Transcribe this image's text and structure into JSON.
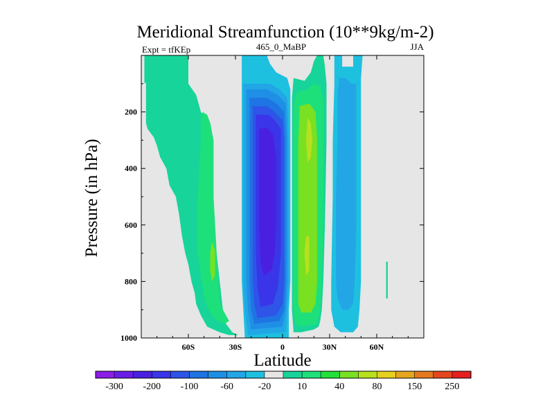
{
  "chart_data": {
    "type": "heatmap",
    "title": "Meridional Streamfunction (10**9kg/m-2)",
    "subtitle_left": "Expt = tfKEp",
    "subtitle_center": "465_0_MaBP",
    "subtitle_right": "JJA",
    "xlabel": "Latitude",
    "ylabel": "Pressure (in hPa)",
    "xlim": [
      -90,
      90
    ],
    "ylim": [
      0,
      1000
    ],
    "y_inverted": true,
    "x_ticks": [
      {
        "value": -60,
        "label": "60S"
      },
      {
        "value": -30,
        "label": "30S"
      },
      {
        "value": 0,
        "label": "0"
      },
      {
        "value": 30,
        "label": "30N"
      },
      {
        "value": 60,
        "label": "60N"
      }
    ],
    "y_ticks": [
      {
        "value": 200,
        "label": "200"
      },
      {
        "value": 400,
        "label": "400"
      },
      {
        "value": 600,
        "label": "600"
      },
      {
        "value": 800,
        "label": "800"
      },
      {
        "value": 1000,
        "label": "1000"
      }
    ],
    "background_color": "#e6e6e6",
    "colorbar": {
      "levels": [
        -300,
        -250,
        -200,
        -150,
        -100,
        -80,
        -60,
        -40,
        -20,
        -10,
        10,
        20,
        40,
        60,
        80,
        100,
        150,
        200,
        250,
        300
      ],
      "labels": [
        "-300",
        "-200",
        "-100",
        "-60",
        "-20",
        "10",
        "40",
        "80",
        "150",
        "250"
      ],
      "colors": [
        "#8c1de6",
        "#6a1de6",
        "#4a20e0",
        "#3a35e8",
        "#2e54e8",
        "#1f74e3",
        "#1f8fe6",
        "#22a6e6",
        "#1ec0e0",
        "#e6e6e6",
        "#17d49a",
        "#1ee07a",
        "#22e03a",
        "#7ae022",
        "#b8e01e",
        "#e6d01e",
        "#e6a61e",
        "#e6781e",
        "#e6461e",
        "#e61e1e"
      ]
    },
    "contours": [
      {
        "name": "sh-polar-cell",
        "level": "10 to 20",
        "color": "#17d49a",
        "points": [
          [
            -88,
            0
          ],
          [
            -70,
            0
          ],
          [
            -70,
            20
          ],
          [
            -74,
            40
          ],
          [
            -78,
            60
          ],
          [
            -84,
            80
          ],
          [
            -88,
            100
          ]
        ]
      },
      {
        "name": "sh-ferrel-outer",
        "level": "10 to 20",
        "color": "#17d49a",
        "points": [
          [
            -87,
            0
          ],
          [
            -60,
            0
          ],
          [
            -60,
            100
          ],
          [
            -55,
            140
          ],
          [
            -52,
            200
          ],
          [
            -46,
            250
          ],
          [
            -44,
            300
          ],
          [
            -44,
            500
          ],
          [
            -42,
            700
          ],
          [
            -40,
            800
          ],
          [
            -38,
            900
          ],
          [
            -36,
            950
          ],
          [
            -32,
            980
          ],
          [
            -28,
            990
          ],
          [
            -34,
            990
          ],
          [
            -40,
            980
          ],
          [
            -48,
            960
          ],
          [
            -52,
            920
          ],
          [
            -55,
            880
          ],
          [
            -56,
            840
          ],
          [
            -58,
            800
          ],
          [
            -60,
            740
          ],
          [
            -62,
            700
          ],
          [
            -64,
            640
          ],
          [
            -66,
            560
          ],
          [
            -68,
            500
          ],
          [
            -72,
            460
          ],
          [
            -74,
            400
          ],
          [
            -78,
            360
          ],
          [
            -80,
            320
          ],
          [
            -82,
            290
          ],
          [
            -86,
            260
          ],
          [
            -87,
            240
          ]
        ]
      },
      {
        "name": "sh-ferrel-inner",
        "level": "20 to 40",
        "color": "#1ee07a",
        "points": [
          [
            -51,
            200
          ],
          [
            -48,
            210
          ],
          [
            -46,
            240
          ],
          [
            -44,
            300
          ],
          [
            -44,
            500
          ],
          [
            -42,
            700
          ],
          [
            -41,
            800
          ],
          [
            -40,
            870
          ],
          [
            -38,
            900
          ],
          [
            -34,
            940
          ],
          [
            -37,
            950
          ],
          [
            -44,
            930
          ],
          [
            -48,
            890
          ],
          [
            -50,
            850
          ],
          [
            -52,
            780
          ],
          [
            -54,
            700
          ],
          [
            -54,
            600
          ],
          [
            -54,
            500
          ],
          [
            -53,
            400
          ],
          [
            -52,
            300
          ],
          [
            -52,
            240
          ]
        ]
      },
      {
        "name": "sh-ferrel-core",
        "level": "40 to 60",
        "color": "#7ae022",
        "points": [
          [
            -45,
            660
          ],
          [
            -43,
            690
          ],
          [
            -43,
            780
          ],
          [
            -45,
            800
          ],
          [
            -46,
            760
          ],
          [
            -46,
            700
          ]
        ]
      },
      {
        "name": "hadley-neg-outer",
        "level": "-20 to -10",
        "color": "#1ec0e0",
        "points": [
          [
            -26,
            0
          ],
          [
            -10,
            0
          ],
          [
            -8,
            30
          ],
          [
            -4,
            60
          ],
          [
            3,
            80
          ],
          [
            5,
            120
          ],
          [
            5,
            800
          ],
          [
            4,
            900
          ],
          [
            4,
            1000
          ],
          [
            -24,
            1000
          ],
          [
            -25,
            900
          ],
          [
            -26,
            800
          ],
          [
            -26,
            400
          ]
        ]
      },
      {
        "name": "hadley-neg-l2",
        "level": "-40 to -20",
        "color": "#22a6e6",
        "points": [
          [
            -25,
            100
          ],
          [
            -8,
            100
          ],
          [
            -2,
            120
          ],
          [
            3,
            150
          ],
          [
            4,
            300
          ],
          [
            4,
            800
          ],
          [
            3,
            900
          ],
          [
            2,
            980
          ],
          [
            -22,
            990
          ],
          [
            -24,
            900
          ],
          [
            -25,
            800
          ],
          [
            -25,
            300
          ]
        ]
      },
      {
        "name": "hadley-neg-l3",
        "level": "-60 to -40",
        "color": "#1f8fe6",
        "points": [
          [
            -23,
            120
          ],
          [
            -10,
            120
          ],
          [
            -3,
            140
          ],
          [
            2,
            170
          ],
          [
            3,
            300
          ],
          [
            3,
            800
          ],
          [
            2,
            900
          ],
          [
            0,
            960
          ],
          [
            -20,
            970
          ],
          [
            -22,
            900
          ],
          [
            -23,
            800
          ],
          [
            -23,
            300
          ]
        ]
      },
      {
        "name": "hadley-neg-l4",
        "level": "-80 to -60",
        "color": "#1f74e3",
        "points": [
          [
            -21,
            150
          ],
          [
            -10,
            150
          ],
          [
            -4,
            170
          ],
          [
            1,
            200
          ],
          [
            2,
            300
          ],
          [
            2,
            800
          ],
          [
            1,
            900
          ],
          [
            -2,
            940
          ],
          [
            -18,
            950
          ],
          [
            -20,
            900
          ],
          [
            -21,
            800
          ],
          [
            -21,
            300
          ]
        ]
      },
      {
        "name": "hadley-neg-l5",
        "level": "-100 to -80",
        "color": "#2e54e8",
        "points": [
          [
            -19,
            180
          ],
          [
            -10,
            180
          ],
          [
            -5,
            200
          ],
          [
            0,
            230
          ],
          [
            1,
            300
          ],
          [
            1,
            800
          ],
          [
            0,
            880
          ],
          [
            -4,
            920
          ],
          [
            -16,
            930
          ],
          [
            -18,
            880
          ],
          [
            -19,
            800
          ],
          [
            -19,
            300
          ]
        ]
      },
      {
        "name": "hadley-neg-l6",
        "level": "-150 to -100",
        "color": "#3a35e8",
        "points": [
          [
            -17,
            210
          ],
          [
            -9,
            210
          ],
          [
            -5,
            230
          ],
          [
            -1,
            260
          ],
          [
            -1,
            400
          ],
          [
            -1,
            700
          ],
          [
            -3,
            820
          ],
          [
            -6,
            880
          ],
          [
            -14,
            890
          ],
          [
            -16,
            820
          ],
          [
            -17,
            700
          ],
          [
            -17,
            400
          ]
        ]
      },
      {
        "name": "hadley-neg-core",
        "level": "-200 to -150",
        "color": "#4a20e0",
        "points": [
          [
            -15,
            260
          ],
          [
            -10,
            255
          ],
          [
            -6,
            280
          ],
          [
            -4,
            360
          ],
          [
            -4,
            600
          ],
          [
            -5,
            700
          ],
          [
            -7,
            760
          ],
          [
            -12,
            780
          ],
          [
            -14,
            730
          ],
          [
            -15,
            600
          ],
          [
            -15,
            400
          ]
        ]
      },
      {
        "name": "hadley-pos-outer",
        "level": "10 to 20",
        "color": "#17d49a",
        "points": [
          [
            7,
            80
          ],
          [
            14,
            90
          ],
          [
            18,
            60
          ],
          [
            20,
            20
          ],
          [
            22,
            0
          ],
          [
            26,
            0
          ],
          [
            27,
            40
          ],
          [
            28,
            100
          ],
          [
            28,
            300
          ],
          [
            27,
            600
          ],
          [
            26,
            800
          ],
          [
            25,
            900
          ],
          [
            24,
            940
          ],
          [
            23,
            960
          ],
          [
            20,
            970
          ],
          [
            12,
            980
          ],
          [
            7,
            980
          ],
          [
            6,
            900
          ],
          [
            6,
            800
          ],
          [
            6,
            300
          ],
          [
            6,
            150
          ]
        ]
      },
      {
        "name": "hadley-pos-l2",
        "level": "20 to 40",
        "color": "#1ee07a",
        "points": [
          [
            9,
            130
          ],
          [
            16,
            120
          ],
          [
            20,
            100
          ],
          [
            24,
            110
          ],
          [
            26,
            160
          ],
          [
            26,
            300
          ],
          [
            26,
            600
          ],
          [
            25,
            800
          ],
          [
            24,
            900
          ],
          [
            22,
            950
          ],
          [
            12,
            960
          ],
          [
            8,
            950
          ],
          [
            7,
            900
          ],
          [
            7,
            800
          ],
          [
            7,
            300
          ],
          [
            7,
            180
          ]
        ]
      },
      {
        "name": "hadley-pos-l3",
        "level": "40 to 60",
        "color": "#7ae022",
        "points": [
          [
            11,
            180
          ],
          [
            17,
            170
          ],
          [
            21,
            200
          ],
          [
            22,
            300
          ],
          [
            22,
            600
          ],
          [
            22,
            800
          ],
          [
            21,
            880
          ],
          [
            18,
            910
          ],
          [
            12,
            910
          ],
          [
            10,
            880
          ],
          [
            10,
            800
          ],
          [
            10,
            300
          ]
        ]
      },
      {
        "name": "hadley-pos-core",
        "level": "60 to 80",
        "color": "#b8e01e",
        "points": [
          [
            16,
            220
          ],
          [
            18,
            240
          ],
          [
            19,
            300
          ],
          [
            18,
            360
          ],
          [
            16,
            380
          ],
          [
            15,
            300
          ]
        ]
      },
      {
        "name": "hadley-pos-core2",
        "level": "60 to 80",
        "color": "#b8e01e",
        "points": [
          [
            15,
            640
          ],
          [
            17,
            640
          ],
          [
            17,
            760
          ],
          [
            15,
            780
          ],
          [
            14,
            700
          ]
        ]
      },
      {
        "name": "nh-ferrel-neg-outer",
        "level": "-20 to -10",
        "color": "#1ec0e0",
        "points": [
          [
            33,
            0
          ],
          [
            38,
            0
          ],
          [
            38,
            40
          ],
          [
            45,
            40
          ],
          [
            45,
            0
          ],
          [
            51,
            0
          ],
          [
            50,
            80
          ],
          [
            50,
            200
          ],
          [
            50,
            400
          ],
          [
            50,
            600
          ],
          [
            50,
            800
          ],
          [
            49,
            900
          ],
          [
            48,
            960
          ],
          [
            45,
            980
          ],
          [
            37,
            980
          ],
          [
            33,
            960
          ],
          [
            31,
            900
          ],
          [
            31,
            800
          ],
          [
            32,
            500
          ],
          [
            32,
            300
          ],
          [
            33,
            100
          ]
        ]
      },
      {
        "name": "nh-ferrel-neg-l2",
        "level": "-40 to -20",
        "color": "#22a6e6",
        "points": [
          [
            36,
            80
          ],
          [
            40,
            80
          ],
          [
            44,
            100
          ],
          [
            47,
            100
          ],
          [
            47,
            200
          ],
          [
            47,
            300
          ],
          [
            47,
            600
          ],
          [
            46,
            800
          ],
          [
            45,
            880
          ],
          [
            42,
            900
          ],
          [
            38,
            900
          ],
          [
            35,
            860
          ],
          [
            34,
            800
          ],
          [
            34,
            500
          ],
          [
            35,
            300
          ],
          [
            35,
            150
          ]
        ]
      },
      {
        "name": "nh-small-feature",
        "level": "10 to 20",
        "color": "#17d49a",
        "points": [
          [
            66,
            730
          ],
          [
            67,
            730
          ],
          [
            67,
            860
          ],
          [
            66,
            860
          ]
        ]
      }
    ]
  }
}
